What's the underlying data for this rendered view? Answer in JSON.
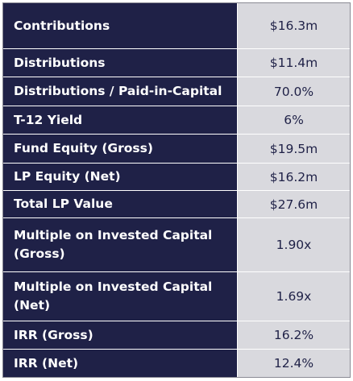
{
  "table": {
    "rows": [
      {
        "label": "Contributions",
        "value": "$16.3m"
      },
      {
        "label": "Distributions",
        "value": "$11.4m"
      },
      {
        "label": "Distributions / Paid-in-Capital",
        "value": "70.0%"
      },
      {
        "label": "T-12 Yield",
        "value": "6%"
      },
      {
        "label": "Fund Equity (Gross)",
        "value": "$19.5m"
      },
      {
        "label": "LP Equity (Net)",
        "value": "$16.2m"
      },
      {
        "label": "Total LP Value",
        "value": "$27.6m"
      },
      {
        "label": "Multiple on Invested Capital (Gross)",
        "value": "1.90x"
      },
      {
        "label": "Multiple on Invested Capital (Net)",
        "value": "1.69x"
      },
      {
        "label": "IRR (Gross)",
        "value": "16.2%"
      },
      {
        "label": "IRR (Net)",
        "value": "12.4%"
      }
    ]
  }
}
